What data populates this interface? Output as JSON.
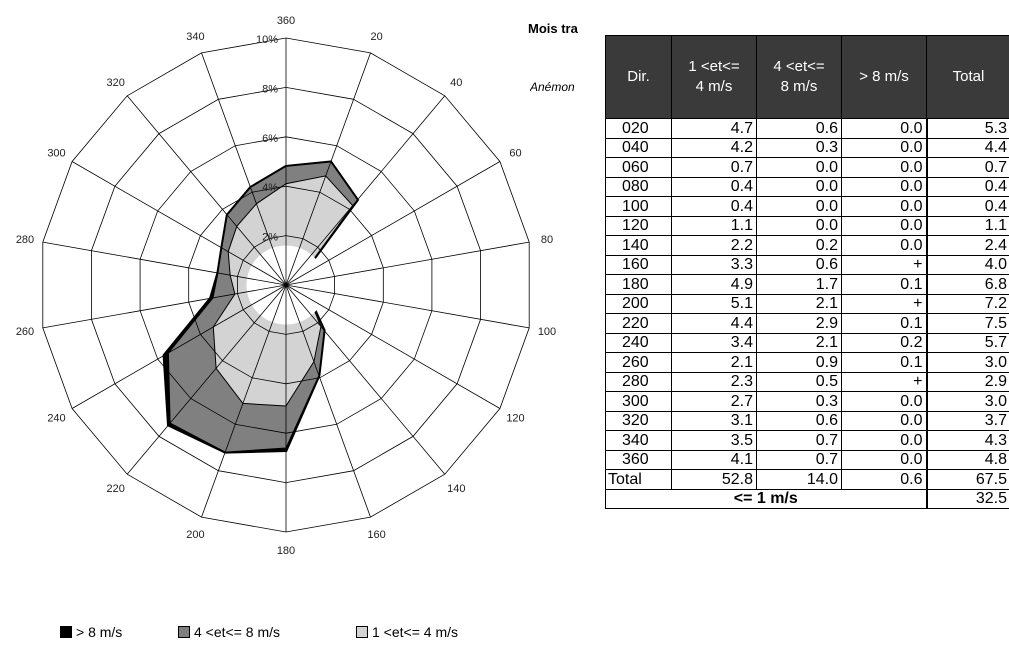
{
  "header": {
    "title": "Mois tra",
    "subtitle": "Anémon"
  },
  "rose": {
    "directions": [
      "020",
      "040",
      "060",
      "080",
      "100",
      "120",
      "140",
      "160",
      "180",
      "200",
      "220",
      "240",
      "260",
      "280",
      "300",
      "320",
      "340",
      "360"
    ],
    "angle_labels": [
      "360",
      "20",
      "40",
      "60",
      "80",
      "100",
      "120",
      "140",
      "160",
      "180",
      "200",
      "220",
      "240",
      "260",
      "280",
      "300",
      "320",
      "340"
    ],
    "ring_labels": [
      "2%",
      "4%",
      "6%",
      "8%",
      "10%"
    ],
    "legend": [
      {
        "label": "> 8 m/s",
        "color": "#000000"
      },
      {
        "label": "4 <et<= 8 m/s",
        "color": "#808080"
      },
      {
        "label": "1 <et<= 4 m/s",
        "color": "#d3d3d3"
      }
    ],
    "colors": {
      "band_low": "#d3d3d3",
      "band_mid": "#808080",
      "band_high": "#000000",
      "calm_circle": "#ffffff"
    }
  },
  "table": {
    "headers": {
      "dir": "Dir.",
      "c1_line1": "1 <et<=",
      "c1_line2": "4 m/s",
      "c2_line1": "4 <et<=",
      "c2_line2": "8 m/s",
      "c3": "> 8 m/s",
      "total": "Total"
    },
    "rows": [
      {
        "dir": "020",
        "a": "4.7",
        "b": "0.6",
        "c": "0.0",
        "t": "5.3"
      },
      {
        "dir": "040",
        "a": "4.2",
        "b": "0.3",
        "c": "0.0",
        "t": "4.4"
      },
      {
        "dir": "060",
        "a": "0.7",
        "b": "0.0",
        "c": "0.0",
        "t": "0.7"
      },
      {
        "dir": "080",
        "a": "0.4",
        "b": "0.0",
        "c": "0.0",
        "t": "0.4"
      },
      {
        "dir": "100",
        "a": "0.4",
        "b": "0.0",
        "c": "0.0",
        "t": "0.4"
      },
      {
        "dir": "120",
        "a": "1.1",
        "b": "0.0",
        "c": "0.0",
        "t": "1.1"
      },
      {
        "dir": "140",
        "a": "2.2",
        "b": "0.2",
        "c": "0.0",
        "t": "2.4"
      },
      {
        "dir": "160",
        "a": "3.3",
        "b": "0.6",
        "c": "+",
        "t": "4.0"
      },
      {
        "dir": "180",
        "a": "4.9",
        "b": "1.7",
        "c": "0.1",
        "t": "6.8"
      },
      {
        "dir": "200",
        "a": "5.1",
        "b": "2.1",
        "c": "+",
        "t": "7.2"
      },
      {
        "dir": "220",
        "a": "4.4",
        "b": "2.9",
        "c": "0.1",
        "t": "7.5"
      },
      {
        "dir": "240",
        "a": "3.4",
        "b": "2.1",
        "c": "0.2",
        "t": "5.7"
      },
      {
        "dir": "260",
        "a": "2.1",
        "b": "0.9",
        "c": "0.1",
        "t": "3.0"
      },
      {
        "dir": "280",
        "a": "2.3",
        "b": "0.5",
        "c": "+",
        "t": "2.9"
      },
      {
        "dir": "300",
        "a": "2.7",
        "b": "0.3",
        "c": "0.0",
        "t": "3.0"
      },
      {
        "dir": "320",
        "a": "3.1",
        "b": "0.6",
        "c": "0.0",
        "t": "3.7"
      },
      {
        "dir": "340",
        "a": "3.5",
        "b": "0.7",
        "c": "0.0",
        "t": "4.3"
      },
      {
        "dir": "360",
        "a": "4.1",
        "b": "0.7",
        "c": "0.0",
        "t": "4.8"
      }
    ],
    "total_row": {
      "label": "Total",
      "a": "52.8",
      "b": "14.0",
      "c": "0.6",
      "t": "67.5"
    },
    "calm_row": {
      "label": "<= 1 m/s",
      "t": "32.5"
    }
  },
  "chart_data": {
    "type": "radar",
    "title": "",
    "axis_unit": "%",
    "r_range": [
      0,
      10
    ],
    "r_ticks": [
      2,
      4,
      6,
      8,
      10
    ],
    "calm_circle_percent": 1.6,
    "categories": [
      "020",
      "040",
      "060",
      "080",
      "100",
      "120",
      "140",
      "160",
      "180",
      "200",
      "220",
      "240",
      "260",
      "280",
      "300",
      "320",
      "340",
      "360"
    ],
    "series": [
      {
        "name": "1 <et<= 4 m/s",
        "values": [
          4.7,
          4.2,
          0.7,
          0.4,
          0.4,
          1.1,
          2.2,
          3.3,
          4.9,
          5.1,
          4.4,
          3.4,
          2.1,
          2.3,
          2.7,
          3.1,
          3.5,
          4.1
        ]
      },
      {
        "name": "4 <et<= 8 m/s",
        "values": [
          0.6,
          0.3,
          0.0,
          0.0,
          0.0,
          0.0,
          0.2,
          0.6,
          1.7,
          2.1,
          2.9,
          2.1,
          0.9,
          0.5,
          0.3,
          0.6,
          0.7,
          0.7
        ]
      },
      {
        "name": "> 8 m/s",
        "values": [
          0.0,
          0.0,
          0.0,
          0.0,
          0.0,
          0.0,
          0.0,
          0.0,
          0.1,
          0.0,
          0.1,
          0.2,
          0.1,
          0.0,
          0.0,
          0.0,
          0.0,
          0.0
        ]
      }
    ],
    "calm": {
      "label": "<= 1 m/s",
      "value": 32.5
    },
    "total": 67.5
  }
}
